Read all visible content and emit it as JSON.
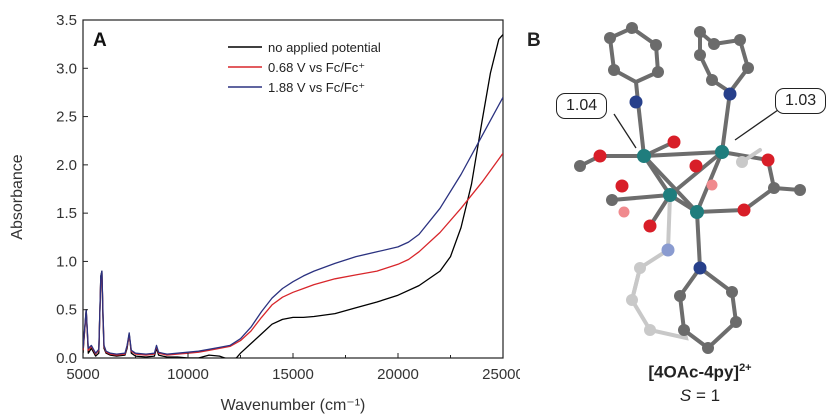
{
  "panel_a": {
    "letter": "A",
    "chart_data": {
      "type": "line",
      "xlabel": "Wavenumber (cm⁻¹)",
      "ylabel": "Absorbance",
      "xlim": [
        5000,
        25000
      ],
      "ylim": [
        0,
        3.5
      ],
      "xticks": [
        "5000",
        "10000",
        "15000",
        "20000",
        "25000"
      ],
      "yticks": [
        "0.0",
        "0.5",
        "1.0",
        "1.5",
        "2.0",
        "2.5",
        "3.0",
        "3.5"
      ],
      "grid": false,
      "legend_position": "top-right",
      "series": [
        {
          "name": "no applied potential",
          "color": "#000000",
          "x": [
            5000,
            5150,
            5250,
            5400,
            5600,
            5750,
            5850,
            5900,
            5950,
            6000,
            6100,
            6300,
            6600,
            7000,
            7100,
            7200,
            7300,
            7500,
            8000,
            8400,
            8500,
            8600,
            8800,
            9000,
            9500,
            10000,
            10500,
            11000,
            11500,
            12000,
            12300,
            12500,
            13000,
            13500,
            14000,
            14500,
            15000,
            15500,
            16000,
            17000,
            18000,
            19000,
            20000,
            21000,
            22000,
            22500,
            23000,
            23500,
            24000,
            24400,
            24800,
            25000
          ],
          "y": [
            0.05,
            0.5,
            0.05,
            0.1,
            0.02,
            0.05,
            0.85,
            0.9,
            0.4,
            0.1,
            0.05,
            0.03,
            0.02,
            0.03,
            0.1,
            0.25,
            0.05,
            0.02,
            0.01,
            0.02,
            0.1,
            0.03,
            0.02,
            0.01,
            0.01,
            0.0,
            0.0,
            0.03,
            0.02,
            -0.02,
            0.0,
            0.05,
            0.15,
            0.25,
            0.35,
            0.4,
            0.42,
            0.42,
            0.43,
            0.46,
            0.52,
            0.58,
            0.65,
            0.75,
            0.9,
            1.05,
            1.35,
            1.8,
            2.45,
            2.95,
            3.3,
            3.35
          ]
        },
        {
          "name": "0.68 V vs Fc/Fc⁺",
          "color": "#d8262b",
          "x": [
            5000,
            5150,
            5250,
            5400,
            5600,
            5750,
            5850,
            5900,
            5950,
            6000,
            6100,
            6300,
            6600,
            7000,
            7100,
            7200,
            7300,
            7500,
            8000,
            8400,
            8500,
            8600,
            8800,
            9000,
            9500,
            10000,
            10500,
            11000,
            11500,
            12000,
            12500,
            13000,
            13500,
            14000,
            14500,
            15000,
            15500,
            16000,
            17000,
            18000,
            19000,
            20000,
            20500,
            21000,
            22000,
            23000,
            24000,
            25000
          ],
          "y": [
            0.08,
            0.48,
            0.08,
            0.12,
            0.04,
            0.08,
            0.82,
            0.88,
            0.45,
            0.12,
            0.06,
            0.04,
            0.03,
            0.04,
            0.12,
            0.24,
            0.07,
            0.04,
            0.03,
            0.04,
            0.12,
            0.05,
            0.04,
            0.03,
            0.04,
            0.05,
            0.06,
            0.08,
            0.1,
            0.12,
            0.18,
            0.28,
            0.42,
            0.55,
            0.63,
            0.68,
            0.72,
            0.76,
            0.82,
            0.86,
            0.9,
            0.97,
            1.02,
            1.1,
            1.3,
            1.55,
            1.82,
            2.12
          ]
        },
        {
          "name": "1.88 V vs Fc/Fc⁺",
          "color": "#2b3280",
          "x": [
            5000,
            5150,
            5250,
            5400,
            5600,
            5750,
            5850,
            5900,
            5950,
            6000,
            6100,
            6300,
            6600,
            7000,
            7100,
            7200,
            7300,
            7500,
            8000,
            8400,
            8500,
            8600,
            8800,
            9000,
            9500,
            10000,
            10500,
            11000,
            11500,
            12000,
            12500,
            13000,
            13500,
            14000,
            14500,
            15000,
            15500,
            16000,
            17000,
            18000,
            19000,
            20000,
            20500,
            21000,
            22000,
            23000,
            24000,
            25000
          ],
          "y": [
            0.1,
            0.5,
            0.1,
            0.13,
            0.05,
            0.09,
            0.84,
            0.9,
            0.46,
            0.13,
            0.07,
            0.05,
            0.04,
            0.05,
            0.13,
            0.26,
            0.08,
            0.05,
            0.04,
            0.05,
            0.13,
            0.06,
            0.05,
            0.04,
            0.05,
            0.06,
            0.07,
            0.09,
            0.11,
            0.13,
            0.2,
            0.32,
            0.48,
            0.62,
            0.72,
            0.79,
            0.85,
            0.9,
            0.98,
            1.05,
            1.1,
            1.15,
            1.2,
            1.28,
            1.55,
            1.9,
            2.3,
            2.7
          ]
        }
      ]
    }
  },
  "panel_b": {
    "letter": "B",
    "callout_left": "1.04",
    "callout_right": "1.03",
    "complex_name": "[4OAc-4py]",
    "complex_charge": "2+",
    "spin_symbol": "S",
    "spin_value": " = 1"
  }
}
